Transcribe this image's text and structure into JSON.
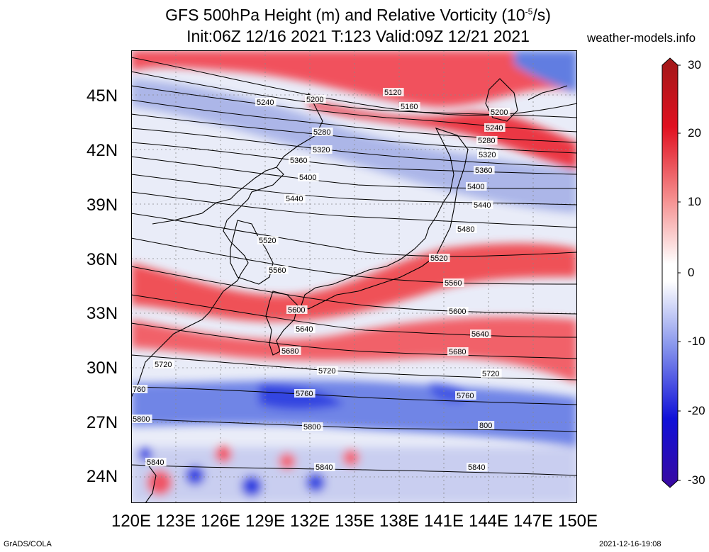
{
  "title_line1": "GFS 500hPa Height (m) and Relative Vorticity (10",
  "title_exp": "-5",
  "title_line1_end": "/s)",
  "title_line2": "Init:06Z 12/16 2021 T:123 Valid:09Z 12/21 2021",
  "site": "weather-models.info",
  "footer_left": "GrADS/COLA",
  "footer_right": "2021-12-16-19:08",
  "lat_labels": [
    "45N",
    "42N",
    "39N",
    "36N",
    "33N",
    "30N",
    "27N",
    "24N"
  ],
  "lon_labels": [
    "120E",
    "123E",
    "126E",
    "129E",
    "132E",
    "135E",
    "138E",
    "141E",
    "144E",
    "147E",
    "150E"
  ],
  "colorbar_labels": [
    "30",
    "20",
    "10",
    "0",
    "-10",
    "-20",
    "-30"
  ],
  "colors": {
    "positive": "#e8001c",
    "negative": "#1e1ee6",
    "neutral": "#ffffff"
  },
  "contour_labels": [
    {
      "text": "5120"
    },
    {
      "text": "5160"
    },
    {
      "text": "5200"
    },
    {
      "text": "5200"
    },
    {
      "text": "5240"
    },
    {
      "text": "5240"
    },
    {
      "text": "5280"
    },
    {
      "text": "5280"
    },
    {
      "text": "5320"
    },
    {
      "text": "5320"
    },
    {
      "text": "5360"
    },
    {
      "text": "5360"
    },
    {
      "text": "5400"
    },
    {
      "text": "5400"
    },
    {
      "text": "5440"
    },
    {
      "text": "5440"
    },
    {
      "text": "5480"
    },
    {
      "text": "5520"
    },
    {
      "text": "5520"
    },
    {
      "text": "5560"
    },
    {
      "text": "5560"
    },
    {
      "text": "5600"
    },
    {
      "text": "5600"
    },
    {
      "text": "5640"
    },
    {
      "text": "5640"
    },
    {
      "text": "5680"
    },
    {
      "text": "5680"
    },
    {
      "text": "5720"
    },
    {
      "text": "5720"
    },
    {
      "text": "5720"
    },
    {
      "text": "760"
    },
    {
      "text": "5760"
    },
    {
      "text": "5760"
    },
    {
      "text": "5800"
    },
    {
      "text": "5800"
    },
    {
      "text": "800"
    },
    {
      "text": "5840"
    },
    {
      "text": "5840"
    },
    {
      "text": "5840"
    }
  ]
}
